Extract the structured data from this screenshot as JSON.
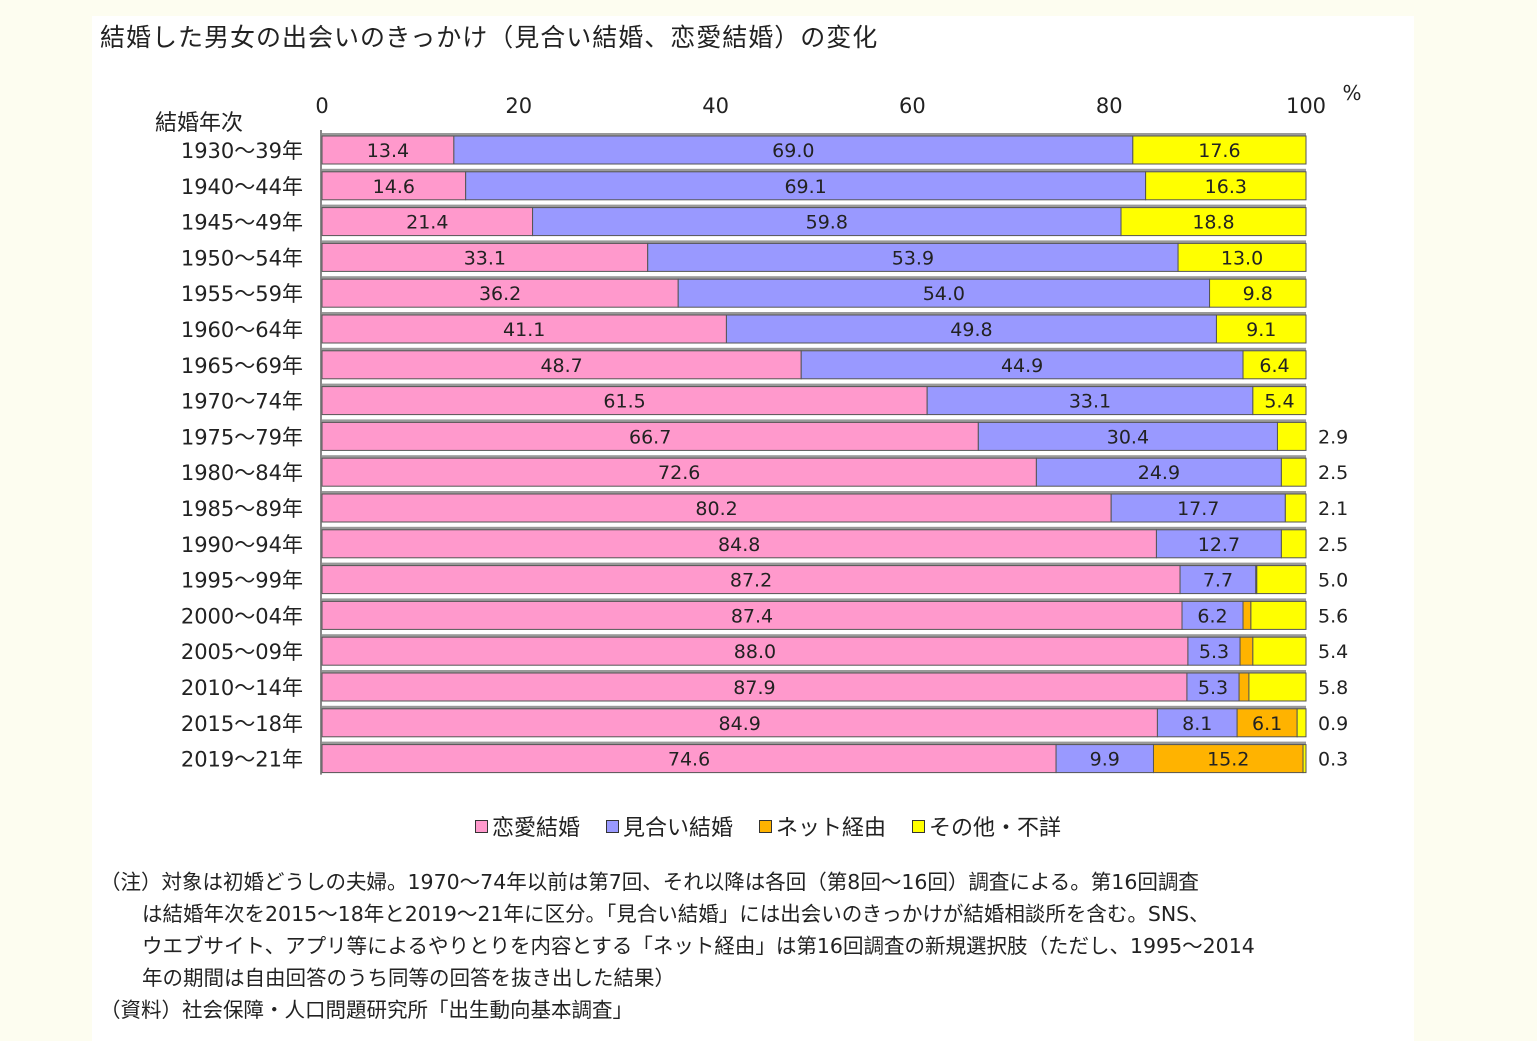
{
  "chart_data": {
    "type": "bar",
    "orientation": "horizontal-stacked",
    "title": "結婚した男女の出会いのきっかけ（見合い結婚、恋愛結婚）の変化",
    "ylabel": "結婚年次",
    "xunit": "%",
    "xlim": [
      0,
      100
    ],
    "xticks": [
      "0",
      "20",
      "40",
      "60",
      "80",
      "100"
    ],
    "categories": [
      "1930～39年",
      "1940～44年",
      "1945～49年",
      "1950～54年",
      "1955～59年",
      "1960～64年",
      "1965～69年",
      "1970～74年",
      "1975～79年",
      "1980～84年",
      "1985～89年",
      "1990～94年",
      "1995～99年",
      "2000～04年",
      "2005～09年",
      "2010～14年",
      "2015～18年",
      "2019～21年"
    ],
    "series": [
      {
        "name": "恋愛結婚",
        "color": "#ff99cc",
        "values": [
          13.4,
          14.6,
          21.4,
          33.1,
          36.2,
          41.1,
          48.7,
          61.5,
          66.7,
          72.6,
          80.2,
          84.8,
          87.2,
          87.4,
          88.0,
          87.9,
          84.9,
          74.6
        ]
      },
      {
        "name": "見合い結婚",
        "color": "#9999ff",
        "values": [
          69.0,
          69.1,
          59.8,
          53.9,
          54.0,
          49.8,
          44.9,
          33.1,
          30.4,
          24.9,
          17.7,
          12.7,
          7.7,
          6.2,
          5.3,
          5.3,
          8.1,
          9.9
        ]
      },
      {
        "name": "ネット経由",
        "color": "#ffb300",
        "values": [
          0,
          0,
          0,
          0,
          0,
          0,
          0,
          0,
          0,
          0,
          0,
          0,
          0.1,
          0.8,
          1.3,
          1.0,
          6.1,
          15.2
        ]
      },
      {
        "name": "その他・不詳",
        "color": "#ffff00",
        "values": [
          17.6,
          16.3,
          18.8,
          13.0,
          9.8,
          9.1,
          6.4,
          5.4,
          2.9,
          2.5,
          2.1,
          2.5,
          5.0,
          5.6,
          5.4,
          5.8,
          0.9,
          0.3
        ]
      }
    ],
    "legend_position": "bottom"
  },
  "notes": [
    "（注）対象は初婚どうしの夫婦。1970～74年以前は第7回、それ以降は各回（第8回～16回）調査による。第16回調査",
    "は結婚年次を2015～18年と2019～21年に区分。「見合い結婚」には出会いのきっかけが結婚相談所を含む。SNS、",
    "ウエブサイト、アプリ等によるやりとりを内容とする「ネット経由」は第16回調査の新規選択肢（ただし、1995～2014",
    "年の期間は自由回答のうち同等の回答を抜き出した結果）",
    "（資料）社会保障・人口問題研究所「出生動向基本調査」"
  ]
}
